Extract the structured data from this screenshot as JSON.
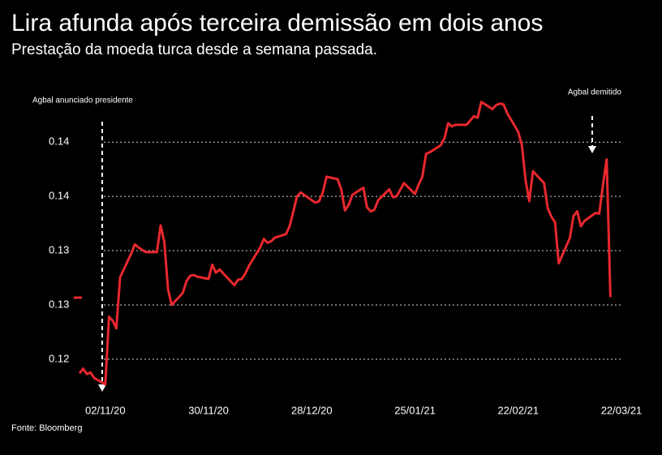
{
  "chart_data": {
    "type": "line",
    "title": "Lira afunda após terceira demissão em dois anos",
    "subtitle": "Prestação da moeda turca desde a semana passada.",
    "source": "Fonte: Bloomberg",
    "annotations": [
      "Agbal anunciado presidente",
      "Agbal demitido"
    ],
    "xlim": [
      "26/10/20",
      "22/03/21"
    ],
    "xticks": [
      "02/11/20",
      "30/11/20",
      "28/12/20",
      "25/01/21",
      "22/02/21",
      "22/03/21"
    ],
    "ylim": [
      0.117,
      0.1445
    ],
    "yticks": [
      0.12,
      {
        "value": 0.125,
        "label": "0.13"
      },
      0.13,
      {
        "value": 0.135,
        "label": "0.14"
      },
      0.14
    ],
    "grid": true,
    "x": [
      "26/10/20",
      "27/10/20",
      "28/10/20",
      "29/10/20",
      "30/10/20",
      "02/11/20",
      "03/11/20",
      "04/11/20",
      "05/11/20",
      "06/11/20",
      "09/11/20",
      "10/11/20",
      "11/11/20",
      "12/11/20",
      "13/11/20",
      "16/11/20",
      "17/11/20",
      "18/11/20",
      "19/11/20",
      "20/11/20",
      "23/11/20",
      "24/11/20",
      "25/11/20",
      "26/11/20",
      "27/11/20",
      "30/11/20",
      "01/12/20",
      "02/12/20",
      "03/12/20",
      "04/12/20",
      "07/12/20",
      "08/12/20",
      "09/12/20",
      "10/12/20",
      "11/12/20",
      "14/12/20",
      "15/12/20",
      "16/12/20",
      "17/12/20",
      "18/12/20",
      "21/12/20",
      "22/12/20",
      "23/12/20",
      "24/12/20",
      "25/12/20",
      "28/12/20",
      "29/12/20",
      "30/12/20",
      "31/12/20",
      "01/01/21",
      "04/01/21",
      "05/01/21",
      "06/01/21",
      "07/01/21",
      "08/01/21",
      "11/01/21",
      "12/01/21",
      "13/01/21",
      "14/01/21",
      "15/01/21",
      "18/01/21",
      "19/01/21",
      "20/01/21",
      "21/01/21",
      "22/01/21",
      "25/01/21",
      "26/01/21",
      "27/01/21",
      "28/01/21",
      "29/01/21",
      "01/02/21",
      "02/02/21",
      "03/02/21",
      "04/02/21",
      "05/02/21",
      "08/02/21",
      "09/02/21",
      "10/02/21",
      "11/02/21",
      "12/02/21",
      "15/02/21",
      "16/02/21",
      "17/02/21",
      "18/02/21",
      "19/02/21",
      "22/02/21",
      "23/02/21",
      "24/02/21",
      "25/02/21",
      "26/02/21",
      "01/03/21",
      "02/03/21",
      "03/03/21",
      "04/03/21",
      "05/03/21",
      "08/03/21",
      "09/03/21",
      "10/03/21",
      "11/03/21",
      "12/03/21",
      "15/03/21",
      "16/03/21",
      "17/03/21",
      "18/03/21",
      "19/03/21"
    ],
    "series": [
      {
        "color": "#e8282e",
        "values": [
          0.1187,
          0.11913,
          0.11862,
          0.11877,
          0.11826,
          0.11768,
          0.12391,
          0.12355,
          0.12283,
          0.12754,
          0.12971,
          0.13058,
          0.1303,
          0.13007,
          0.12986,
          0.12986,
          0.13232,
          0.1308,
          0.12645,
          0.125,
          0.12609,
          0.12717,
          0.12768,
          0.12775,
          0.1276,
          0.12739,
          0.1287,
          0.12797,
          0.12826,
          0.1279,
          0.12681,
          0.12732,
          0.12739,
          0.1279,
          0.12862,
          0.13029,
          0.13109,
          0.13072,
          0.13087,
          0.1312,
          0.13152,
          0.13225,
          0.13362,
          0.135,
          0.13536,
          0.13464,
          0.13442,
          0.13456,
          0.13536,
          0.13681,
          0.13659,
          0.13565,
          0.1337,
          0.1342,
          0.13514,
          0.1358,
          0.13399,
          0.13362,
          0.13377,
          0.13464,
          0.13565,
          0.13493,
          0.135,
          0.1356,
          0.13623,
          0.13522,
          0.13609,
          0.13681,
          0.13891,
          0.13906,
          0.13971,
          0.14036,
          0.14174,
          0.14145,
          0.14159,
          0.14159,
          0.142,
          0.14239,
          0.14225,
          0.1437,
          0.14304,
          0.14341,
          0.14355,
          0.14348,
          0.14268,
          0.14094,
          0.13971,
          0.13645,
          0.13456,
          0.13732,
          0.13623,
          0.13391,
          0.13312,
          0.13261,
          0.12884,
          0.13116,
          0.13319,
          0.13362,
          0.13225,
          0.13275,
          0.13348,
          0.13341,
          0.13609,
          0.13841,
          0.12572
        ]
      }
    ]
  }
}
